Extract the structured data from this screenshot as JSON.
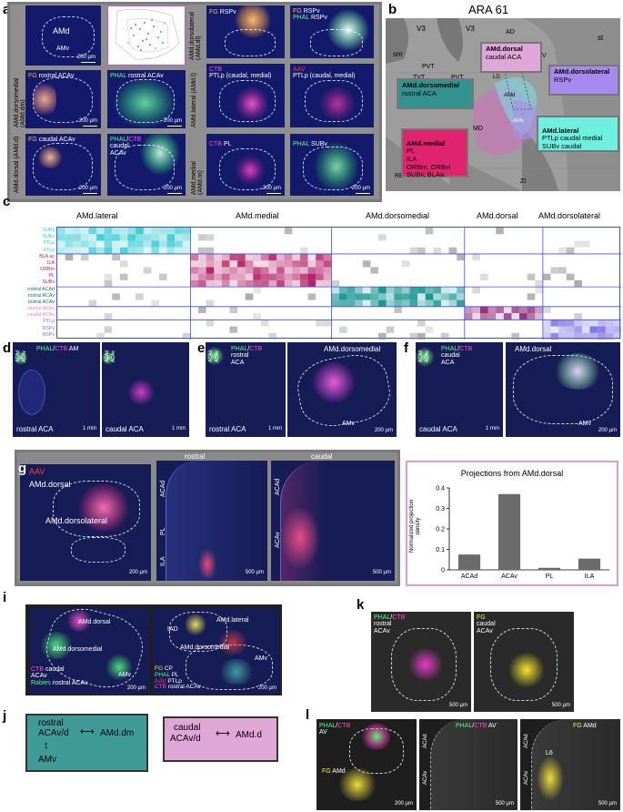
{
  "panels": {
    "a": {
      "letter": "a",
      "top_left": {
        "amd": "AMd",
        "amv": "AMv",
        "scale": "200 µm"
      },
      "fg_rspv": {
        "fg": "FG",
        "target": "RSPv"
      },
      "fg_ph_rspv": {
        "fg": "FG",
        "fg_target": "RSPv",
        "phal": "PHAL",
        "phal_target": "RSPv"
      },
      "row_dorsolateral": "AMd.dorsolateral (AMd.dl)",
      "row_dorsomedial": "AMd.dorsomedial (AMd.dm)",
      "row_lateral": "AMd.lateral (AMd.l)",
      "row_dorsal": "AMd.dorsal (AMd.d)",
      "row_medial": "AMd.medial (AMd.m)",
      "fg_rostral": {
        "fg": "FG",
        "target": "rostral ACAv",
        "scale": "200 µm"
      },
      "phal_rostral": {
        "phal": "PHAL",
        "target": "rostral ACAv",
        "scale": "200 µm"
      },
      "ctb_ptlp": {
        "ctb": "CTB",
        "target": "PTLp (caudal, medial)"
      },
      "aav_ptlp": {
        "aav": "AAV",
        "target": "PTLp (caudal, medial)"
      },
      "fg_caudal": {
        "fg": "FG",
        "target": "caudal ACAv",
        "scale": "200 µm"
      },
      "phal_ctb_caudal": {
        "phal": "PHAL",
        "ctb": "CTB",
        "target1": "caudal",
        "target2": "ACAv",
        "scale": "200 µm"
      },
      "ctb_pl": {
        "ctb": "CTB",
        "target": "PL",
        "scale": "200 µm"
      },
      "phal_subv": {
        "phal": "PHAL",
        "target": "SUBv",
        "scale": "200 µm"
      }
    },
    "b": {
      "letter": "b",
      "title": "ARA 61",
      "atlas_labels": [
        "V3",
        "V3",
        "sm",
        "PVT",
        "TVT",
        "PVT",
        "AD",
        "st",
        "TH",
        "V",
        "AV",
        "MD",
        "RE",
        "RE",
        "ZI",
        "AMd",
        "AMv",
        "LD"
      ],
      "boxes": [
        {
          "name": "AMd.dorsal",
          "desc": "caudal ACA",
          "color": "#dfa7d8"
        },
        {
          "name": "AMd.dorsomedial",
          "desc": "rostral ACA",
          "color": "#33928f"
        },
        {
          "name": "AMd.dorsolateral",
          "desc": "RSPv",
          "color": "#a78af0"
        },
        {
          "name": "AMd.medial",
          "desc": "PL\nILA\nORBm, ORBvl\nSUBv, BLAa",
          "color": "#e0226f"
        },
        {
          "name": "AMd.lateral",
          "desc": "PTLp caudal medial\nSUBv caudal",
          "color": "#6df0e0"
        }
      ]
    },
    "c": {
      "letter": "c",
      "groups": [
        "AMd.lateral",
        "AMd.medial",
        "AMd.dorsomedial",
        "AMd.dorsal",
        "AMd.dorsolateral"
      ],
      "rows": [
        {
          "label": "SUBv",
          "color": "#33cfcf"
        },
        {
          "label": "SUBv",
          "color": "#33cfcf"
        },
        {
          "label": "PTLp",
          "color": "#33cfcf"
        },
        {
          "label": "PTLp",
          "color": "#33cfcf"
        },
        {
          "label": "BLA ac",
          "color": "#c0186f"
        },
        {
          "label": "ILA",
          "color": "#c0186f"
        },
        {
          "label": "ORBm",
          "color": "#c0186f"
        },
        {
          "label": "PL",
          "color": "#c0186f"
        },
        {
          "label": "SUBv",
          "color": "#c0186f"
        },
        {
          "label": "rostral ACAd",
          "color": "#1a6d6b"
        },
        {
          "label": "rostral ACAv",
          "color": "#1a6d6b"
        },
        {
          "label": "rostral ACAv",
          "color": "#1a6d6b"
        },
        {
          "label": "caudal ACAv",
          "color": "#d98ad0"
        },
        {
          "label": "caudal ACAv",
          "color": "#d98ad0"
        },
        {
          "label": "PTLp",
          "color": "#8a78d8"
        },
        {
          "label": "RSPv",
          "color": "#8a78d8"
        },
        {
          "label": "RSPv",
          "color": "#8a78d8"
        }
      ]
    },
    "d": {
      "letter": "d",
      "phal": "PHAL",
      "ctb": "CTB",
      "target": "AM",
      "acad": "ACAd",
      "acav": "ACAv",
      "left_caption": "rostral ACA",
      "right_caption": "caudal ACA",
      "scale1": "1 mm",
      "scale2": "1 mm"
    },
    "e": {
      "letter": "e",
      "phal": "PHAL",
      "ctb": "CTB",
      "target1": "rostral",
      "target2": "ACA",
      "acad": "ACAd",
      "acav": "ACAv",
      "caption": "rostral ACA",
      "scale1": "1 mm",
      "right_title": "AMd.dorsomedial",
      "amv": "AMv",
      "scale2": "200 µm"
    },
    "f": {
      "letter": "f",
      "phal": "PHAL",
      "ctb": "CTB",
      "target1": "caudal",
      "target2": "ACA",
      "acad": "ACAd",
      "acav": "ACAv",
      "caption": "caudal ACA",
      "scale1": "1 mm",
      "right_title": "AMd.dorsal",
      "amv": "AMv",
      "scale2": "200 µm"
    },
    "g": {
      "letter": "g",
      "aav": "AAV",
      "amd_dorsal": "AMd.dorsal",
      "amd_dorsolateral": "AMd.dorsolateral",
      "scale1": "200 µm",
      "rostral": "rostral",
      "caudal": "caudal",
      "labels_rostral": [
        "ACAd",
        "PL",
        "ILA"
      ],
      "scale2": "500 µm",
      "labels_caudal": [
        "ACAd",
        "ACAv"
      ],
      "scale3": "500 µm"
    },
    "h": {
      "letter": "h",
      "chart_title": "Projections from AMd.dorsal",
      "ylabel": "Normalized projection density"
    },
    "i": {
      "letter": "i",
      "left": {
        "amd_dorsal": "AMd.dorsal",
        "amd_dorsomedial": "AMd.dorsomedial",
        "amv": "AMv",
        "ctb": "CTB",
        "ctb_target": "caudal",
        "acav": "ACAv",
        "rabies": "Rabies",
        "rabies_target": "rostral ACAv",
        "scale": "200 µm"
      },
      "right": {
        "iad": "IAD",
        "amd_lateral": "AMd.lateral",
        "amd_dorsomedial": "AMd.dorsomedial",
        "amv": "AMv",
        "fg": "FG",
        "fg_target": "CP",
        "phal": "PHAL",
        "phal_target": "PL",
        "aav": "AAV",
        "aav_target": "PTLp",
        "ctb": "CTB",
        "ctb_target": "rostral ACAv",
        "scale": "200 µm"
      }
    },
    "j": {
      "letter": "j",
      "box1": {
        "rostral": "rostral",
        "acav": "ACAv/d",
        "amdm": "AMd.dm",
        "amv": "AMv",
        "color": "#3f9a98"
      },
      "box2": {
        "caudal": "caudal",
        "acav": "ACAv/d",
        "amd": "AMd.d",
        "color": "#dfa7d8"
      }
    },
    "k": {
      "letter": "k",
      "left": {
        "phal": "PHAL",
        "ctb": "CTB",
        "t1": "rostral",
        "t2": "ACAv",
        "scale": "500 µm"
      },
      "right": {
        "fg": "FG",
        "t1": "caudal",
        "t2": "ACAv",
        "scale": "500 µm"
      }
    },
    "l": {
      "letter": "l",
      "p1": {
        "phal": "PHAL",
        "ctb": "CTB",
        "t": "AV",
        "fg": "FG",
        "fg_t": "AMd",
        "scale": "200 µm"
      },
      "p2": {
        "phal": "PHAL",
        "ctb": "CTB",
        "t": "AV",
        "acad": "ACAd",
        "acav": "ACAv",
        "scale": "500 µm"
      },
      "p3": {
        "fg": "FG",
        "t": "AMd",
        "acad": "ACAd",
        "acav": "ACAv",
        "l6": "L6",
        "scale": "500 µm"
      }
    }
  },
  "chart_data": {
    "type": "bar",
    "title": "Projections from AMd.dorsal",
    "categories": [
      "ACAd",
      "ACAv",
      "PL",
      "ILA"
    ],
    "values": [
      0.075,
      0.37,
      0.01,
      0.055
    ],
    "ylabel": "Normalized projection density",
    "ylim": [
      0,
      0.4
    ],
    "yticks": [
      "0",
      "0.1",
      "0.2",
      "0.3",
      "0.4"
    ],
    "bar_color": "#6b6b6b"
  }
}
